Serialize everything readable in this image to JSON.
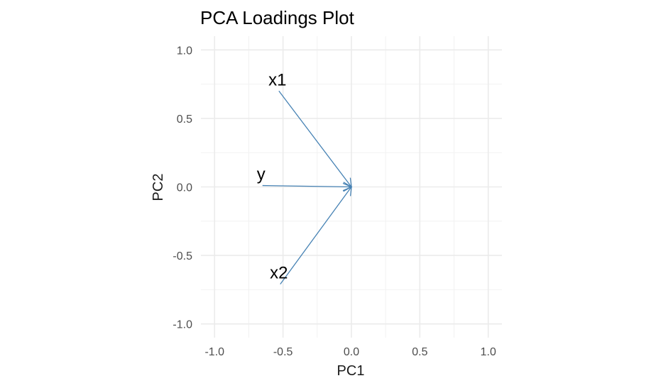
{
  "chart_data": {
    "type": "scatter",
    "title": "PCA Loadings Plot",
    "xlabel": "PC1",
    "ylabel": "PC2",
    "xlim": [
      -1.1,
      1.1
    ],
    "ylim": [
      -1.1,
      1.1
    ],
    "x_ticks": [
      -1.0,
      -0.5,
      0.0,
      0.5,
      1.0
    ],
    "y_ticks": [
      -1.0,
      -0.5,
      0.0,
      0.5,
      1.0
    ],
    "x_tick_labels": [
      "-1.0",
      "-0.5",
      "0.0",
      "0.5",
      "1.0"
    ],
    "y_tick_labels": [
      "-1.0",
      "-0.5",
      "0.0",
      "0.5",
      "1.0"
    ],
    "grid": true,
    "arrow_color": "#4682B4",
    "vectors": [
      {
        "name": "x1",
        "x_start": -0.53,
        "y_start": 0.7,
        "x_end": 0.0,
        "y_end": 0.0
      },
      {
        "name": "y",
        "x_start": -0.65,
        "y_start": 0.01,
        "x_end": 0.0,
        "y_end": 0.0
      },
      {
        "name": "x2",
        "x_start": -0.52,
        "y_start": -0.71,
        "x_end": 0.0,
        "y_end": 0.0
      }
    ]
  }
}
